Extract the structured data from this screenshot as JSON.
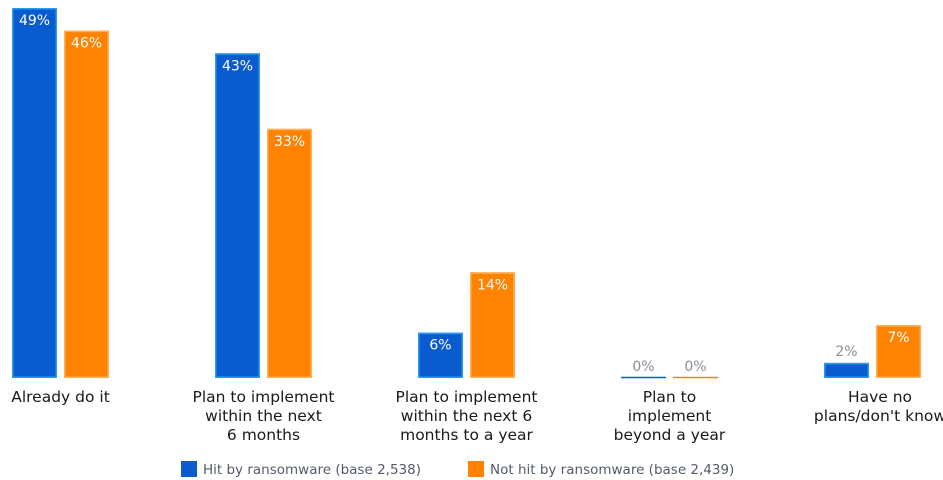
{
  "colors": {
    "series1": "#0a5bd0",
    "series1_edge": "#2b9bf0",
    "series2": "#ff8200",
    "series2_edge": "#ffb15a",
    "zero_label": "#8a8f99"
  },
  "chart_data": {
    "type": "bar",
    "categories": [
      "Already do it",
      "Plan to implement within the next 6 months",
      "Plan to implement within the next 6 months to a year",
      "Plan to implement beyond a year",
      "Have no plans/don't know"
    ],
    "category_lines": [
      [
        "Already do it"
      ],
      [
        "Plan to implement",
        "within the next",
        "6 months"
      ],
      [
        "Plan to implement",
        "within the next 6",
        "months to a year"
      ],
      [
        "Plan to",
        "implement",
        "beyond a year"
      ],
      [
        "Have no",
        "plans/don't know"
      ]
    ],
    "series": [
      {
        "name": "Hit by ransomware (base 2,538)",
        "values": [
          49,
          43,
          6,
          0,
          2
        ],
        "labels": [
          "49%",
          "43%",
          "6%",
          "0%",
          "2%"
        ]
      },
      {
        "name": "Not hit by ransomware (base 2,439)",
        "values": [
          46,
          33,
          14,
          0,
          7
        ],
        "labels": [
          "46%",
          "33%",
          "14%",
          "0%",
          "7%"
        ]
      }
    ],
    "ylim": [
      0,
      49
    ],
    "legend": "bottom-center",
    "grid": false
  }
}
